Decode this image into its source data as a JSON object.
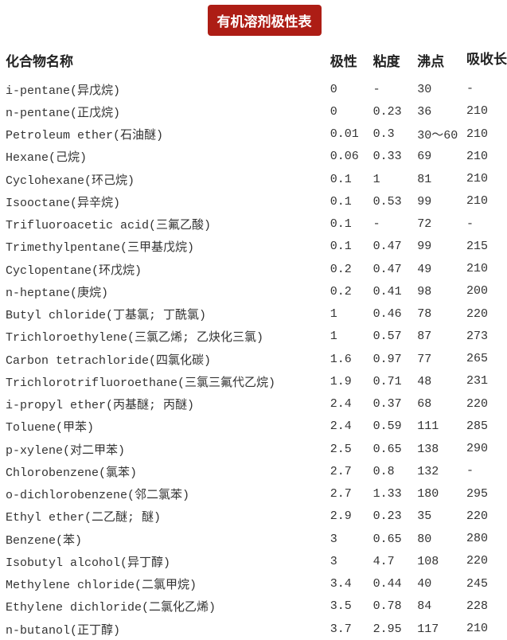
{
  "title": "有机溶剂极性表",
  "headers": [
    "化合物名称",
    "极性",
    "粘度",
    "沸点",
    "吸收长"
  ],
  "rows": [
    [
      "i-pentane(异戊烷)",
      "0",
      "-",
      "30",
      "-"
    ],
    [
      "n-pentane(正戊烷)",
      "0",
      "0.23",
      "36",
      "210"
    ],
    [
      "Petroleum ether(石油醚)",
      "0.01",
      "0.3",
      "30～60",
      "210"
    ],
    [
      "Hexane(己烷)",
      "0.06",
      "0.33",
      "69",
      "210"
    ],
    [
      "Cyclohexane(环己烷)",
      "0.1",
      "1",
      "81",
      "210"
    ],
    [
      "Isooctane(异辛烷)",
      "0.1",
      "0.53",
      "99",
      "210"
    ],
    [
      "Trifluoroacetic acid(三氟乙酸)",
      "0.1",
      "-",
      "72",
      "-"
    ],
    [
      "Trimethylpentane(三甲基戊烷)",
      "0.1",
      "0.47",
      "99",
      "215"
    ],
    [
      "Cyclopentane(环戊烷)",
      "0.2",
      "0.47",
      "49",
      "210"
    ],
    [
      "n-heptane(庚烷)",
      "0.2",
      "0.41",
      "98",
      "200"
    ],
    [
      "Butyl chloride(丁基氯; 丁酰氯)",
      "1",
      "0.46",
      "78",
      "220"
    ],
    [
      "Trichloroethylene(三氯乙烯; 乙炔化三氯)",
      "1",
      "0.57",
      "87",
      "273"
    ],
    [
      "Carbon tetrachloride(四氯化碳)",
      "1.6",
      "0.97",
      "77",
      "265"
    ],
    [
      "Trichlorotrifluoroethane(三氯三氟代乙烷)",
      "1.9",
      "0.71",
      "48",
      "231"
    ],
    [
      "i-propyl ether(丙基醚; 丙醚)",
      "2.4",
      "0.37",
      "68",
      "220"
    ],
    [
      "Toluene(甲苯)",
      "2.4",
      "0.59",
      "111",
      "285"
    ],
    [
      "p-xylene(对二甲苯)",
      "2.5",
      "0.65",
      "138",
      "290"
    ],
    [
      "Chlorobenzene(氯苯)",
      "2.7",
      "0.8",
      "132",
      "-"
    ],
    [
      "o-dichlorobenzene(邻二氯苯)",
      "2.7",
      "1.33",
      "180",
      "295"
    ],
    [
      "Ethyl ether(二乙醚; 醚)",
      "2.9",
      "0.23",
      "35",
      "220"
    ],
    [
      "Benzene(苯)",
      "3",
      "0.65",
      "80",
      "280"
    ],
    [
      "Isobutyl alcohol(异丁醇)",
      "3",
      "4.7",
      "108",
      "220"
    ],
    [
      "Methylene chloride(二氯甲烷)",
      "3.4",
      "0.44",
      "40",
      "245"
    ],
    [
      "Ethylene dichloride(二氯化乙烯)",
      "3.5",
      "0.78",
      "84",
      "228"
    ],
    [
      "n-butanol(正丁醇)",
      "3.7",
      "2.95",
      "117",
      "210"
    ]
  ],
  "colors": {
    "title_bg": "#ad1d15"
  }
}
